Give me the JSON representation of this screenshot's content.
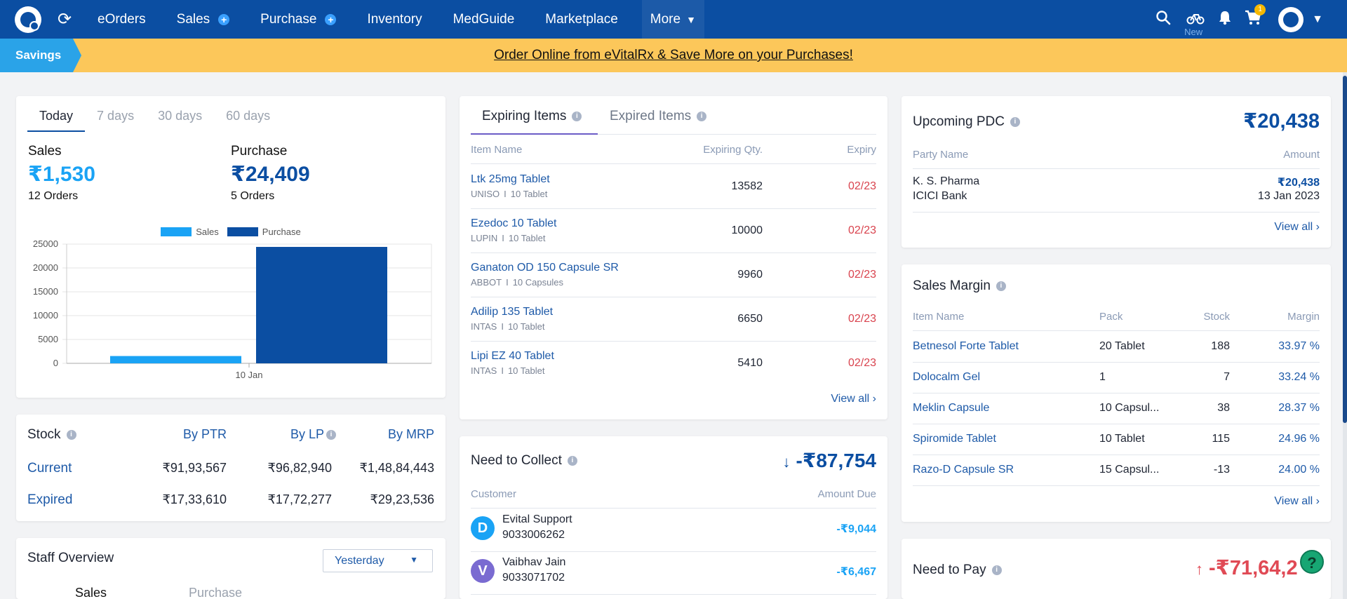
{
  "nav": {
    "items": [
      {
        "label": "eOrders",
        "plus": false
      },
      {
        "label": "Sales",
        "plus": true
      },
      {
        "label": "Purchase",
        "plus": true
      },
      {
        "label": "Inventory",
        "plus": false
      },
      {
        "label": "MedGuide",
        "plus": false
      },
      {
        "label": "Marketplace",
        "plus": false
      }
    ],
    "more_label": "More",
    "new_label": "New",
    "cart_count": "1"
  },
  "banner": {
    "tag": "Savings",
    "text": "Order Online from eVitalRx & Save More on your Purchases!"
  },
  "summary": {
    "tabs": [
      "Today",
      "7 days",
      "30 days",
      "60 days"
    ],
    "active_tab": 0,
    "sales_label": "Sales",
    "sales_amount": "₹1,530",
    "sales_orders": "12 Orders",
    "purchase_label": "Purchase",
    "purchase_amount": "₹24,409",
    "purchase_orders": "5 Orders"
  },
  "chart_data": {
    "type": "bar",
    "categories": [
      "10 Jan"
    ],
    "series": [
      {
        "name": "Sales",
        "values": [
          1530
        ],
        "color": "#1aa3f5"
      },
      {
        "name": "Purchase",
        "values": [
          24409
        ],
        "color": "#0b4ea2"
      }
    ],
    "yticks": [
      "0",
      "5000",
      "10000",
      "15000",
      "20000",
      "25000"
    ],
    "ylim": [
      0,
      25000
    ],
    "legend": "top",
    "grid": true
  },
  "stock": {
    "title": "Stock",
    "columns": [
      "By PTR",
      "By LP",
      "By MRP"
    ],
    "rows": [
      {
        "label": "Current",
        "values": [
          "₹91,93,567",
          "₹96,82,940",
          "₹1,48,84,443"
        ]
      },
      {
        "label": "Expired",
        "values": [
          "₹17,33,610",
          "₹17,72,277",
          "₹29,23,536"
        ]
      }
    ]
  },
  "staff": {
    "title": "Staff Overview",
    "period": "Yesterday",
    "tabs": [
      "Sales",
      "Purchase"
    ]
  },
  "expiring": {
    "tabs": [
      "Expiring Items",
      "Expired Items"
    ],
    "headers": [
      "Item Name",
      "Expiring Qty.",
      "Expiry"
    ],
    "rows": [
      {
        "name": "Ltk 25mg Tablet",
        "maker": "UNISO",
        "pack": "10 Tablet",
        "qty": "13582",
        "expiry": "02/23"
      },
      {
        "name": "Ezedoc 10 Tablet",
        "maker": "LUPIN",
        "pack": "10 Tablet",
        "qty": "10000",
        "expiry": "02/23"
      },
      {
        "name": "Ganaton OD 150 Capsule SR",
        "maker": "ABBOT",
        "pack": "10 Capsules",
        "qty": "9960",
        "expiry": "02/23"
      },
      {
        "name": "Adilip 135 Tablet",
        "maker": "INTAS",
        "pack": "10 Tablet",
        "qty": "6650",
        "expiry": "02/23"
      },
      {
        "name": "Lipi EZ 40 Tablet",
        "maker": "INTAS",
        "pack": "10 Tablet",
        "qty": "5410",
        "expiry": "02/23"
      }
    ],
    "view_all": "View all"
  },
  "collect": {
    "title": "Need to Collect",
    "total": "-₹87,754",
    "headers": [
      "Customer",
      "Amount Due"
    ],
    "rows": [
      {
        "initial": "D",
        "name": "Evital Support",
        "phone": "9033006262",
        "amount": "-₹9,044",
        "color": "#1aa3f5"
      },
      {
        "initial": "V",
        "name": "Vaibhav Jain",
        "phone": "9033071702",
        "amount": "-₹6,467",
        "color": "#7a6bd1"
      }
    ]
  },
  "pdc": {
    "title": "Upcoming PDC",
    "total": "₹20,438",
    "headers": [
      "Party Name",
      "Amount"
    ],
    "row": {
      "party": "K. S. Pharma",
      "bank": "ICICI Bank",
      "amount": "₹20,438",
      "date": "13 Jan 2023"
    },
    "view_all": "View all"
  },
  "margin": {
    "title": "Sales Margin",
    "headers": [
      "Item Name",
      "Pack",
      "Stock",
      "Margin"
    ],
    "rows": [
      {
        "name": "Betnesol Forte Tablet",
        "pack": "20 Tablet",
        "stock": "188",
        "margin": "33.97 %"
      },
      {
        "name": "Dolocalm Gel",
        "pack": "1",
        "stock": "7",
        "margin": "33.24 %"
      },
      {
        "name": "Meklin Capsule",
        "pack": "10 Capsul...",
        "stock": "38",
        "margin": "28.37 %"
      },
      {
        "name": "Spiromide Tablet",
        "pack": "10 Tablet",
        "stock": "115",
        "margin": "24.96 %"
      },
      {
        "name": "Razo-D Capsule SR",
        "pack": "15 Capsul...",
        "stock": "-13",
        "margin": "24.00 %"
      }
    ],
    "view_all": "View all"
  },
  "pay": {
    "title": "Need to Pay",
    "total": "-₹71,64,2"
  },
  "help_label": "?"
}
